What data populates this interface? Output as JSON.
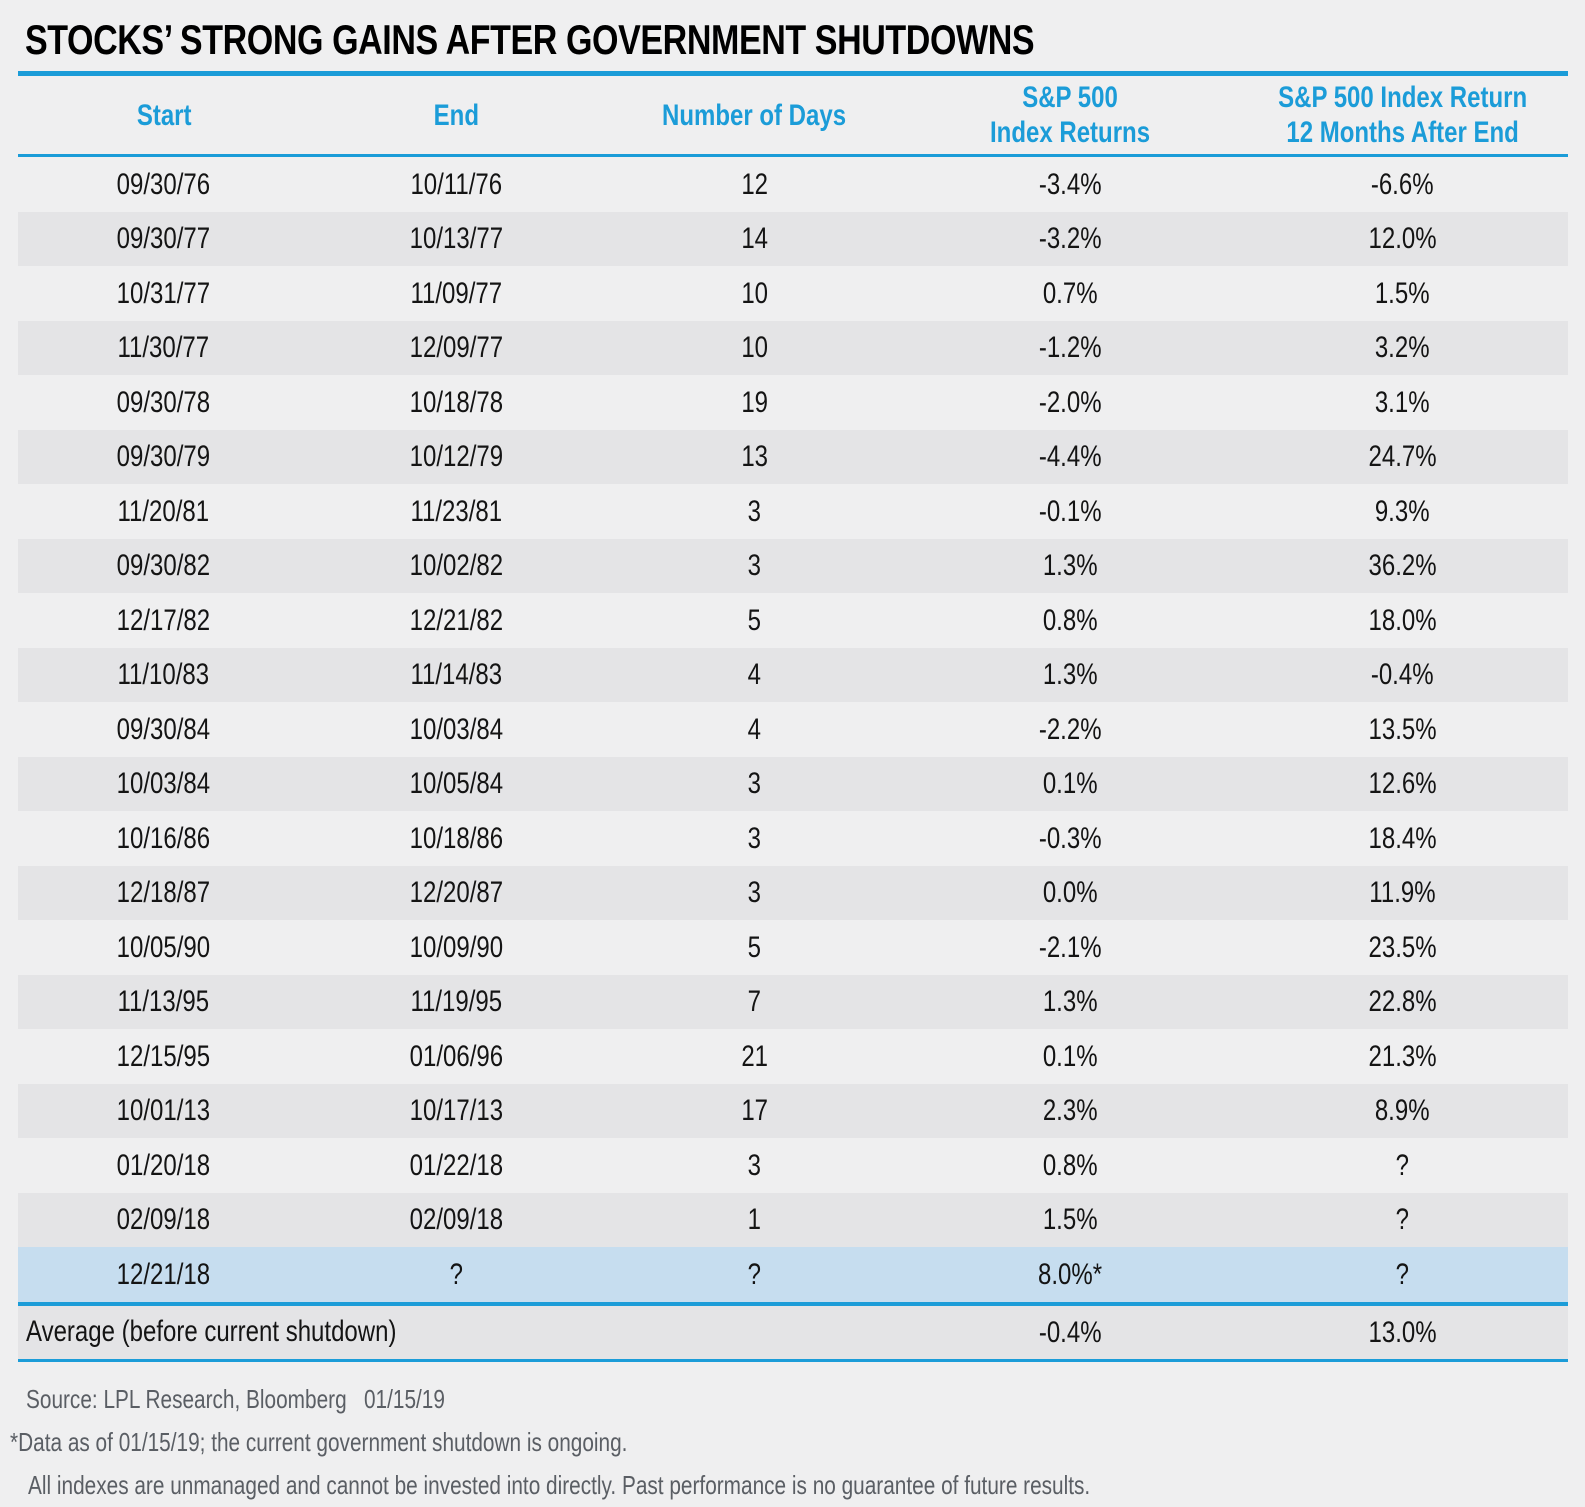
{
  "page": {
    "title": "STOCKS’ STRONG GAINS AFTER GOVERNMENT SHUTDOWNS"
  },
  "colors": {
    "accent_blue": "#1b9cd8",
    "header_text_blue": "#1b9cd8",
    "page_background": "#efeff0",
    "alt_row_gray": "#e4e4e6",
    "highlight_row_blue": "#c6ddef",
    "body_text": "#141414",
    "footer_text_gray": "#5a5e64"
  },
  "chart_data": {
    "type": "table",
    "title": "STOCKS’ STRONG GAINS AFTER GOVERNMENT SHUTDOWNS",
    "columns": [
      [
        "Start"
      ],
      [
        "End"
      ],
      [
        "Number of Days"
      ],
      [
        "S&P 500",
        "Index Returns"
      ],
      [
        "S&P 500 Index Return",
        "12 Months After End"
      ]
    ],
    "rows": [
      [
        "09/30/76",
        "10/11/76",
        "12",
        "-3.4%",
        "-6.6%"
      ],
      [
        "09/30/77",
        "10/13/77",
        "14",
        "-3.2%",
        "12.0%"
      ],
      [
        "10/31/77",
        "11/09/77",
        "10",
        "0.7%",
        "1.5%"
      ],
      [
        "11/30/77",
        "12/09/77",
        "10",
        "-1.2%",
        "3.2%"
      ],
      [
        "09/30/78",
        "10/18/78",
        "19",
        "-2.0%",
        "3.1%"
      ],
      [
        "09/30/79",
        "10/12/79",
        "13",
        "-4.4%",
        "24.7%"
      ],
      [
        "11/20/81",
        "11/23/81",
        "3",
        "-0.1%",
        "9.3%"
      ],
      [
        "09/30/82",
        "10/02/82",
        "3",
        "1.3%",
        "36.2%"
      ],
      [
        "12/17/82",
        "12/21/82",
        "5",
        "0.8%",
        "18.0%"
      ],
      [
        "11/10/83",
        "11/14/83",
        "4",
        "1.3%",
        "-0.4%"
      ],
      [
        "09/30/84",
        "10/03/84",
        "4",
        "-2.2%",
        "13.5%"
      ],
      [
        "10/03/84",
        "10/05/84",
        "3",
        "0.1%",
        "12.6%"
      ],
      [
        "10/16/86",
        "10/18/86",
        "3",
        "-0.3%",
        "18.4%"
      ],
      [
        "12/18/87",
        "12/20/87",
        "3",
        "0.0%",
        "11.9%"
      ],
      [
        "10/05/90",
        "10/09/90",
        "5",
        "-2.1%",
        "23.5%"
      ],
      [
        "11/13/95",
        "11/19/95",
        "7",
        "1.3%",
        "22.8%"
      ],
      [
        "12/15/95",
        "01/06/96",
        "21",
        "0.1%",
        "21.3%"
      ],
      [
        "10/01/13",
        "10/17/13",
        "17",
        "2.3%",
        "8.9%"
      ],
      [
        "01/20/18",
        "01/22/18",
        "3",
        "0.8%",
        "?"
      ],
      [
        "02/09/18",
        "02/09/18",
        "1",
        "1.5%",
        "?"
      ],
      [
        "12/21/18",
        "?",
        "?",
        "8.0%*",
        "?"
      ]
    ],
    "highlight_row_index": 20,
    "average_row": {
      "label": "Average (before current shutdown)",
      "sp500_return": "-0.4%",
      "sp500_return_12m": "13.0%"
    },
    "source": "Source: LPL Research, Bloomberg   01/15/19",
    "footnote_mark": "*",
    "footnote": "Data as of 01/15/19; the current government shutdown is ongoing.",
    "disclaimer": "All indexes are unmanaged and cannot be invested into directly. Past performance is no guarantee of future results."
  }
}
